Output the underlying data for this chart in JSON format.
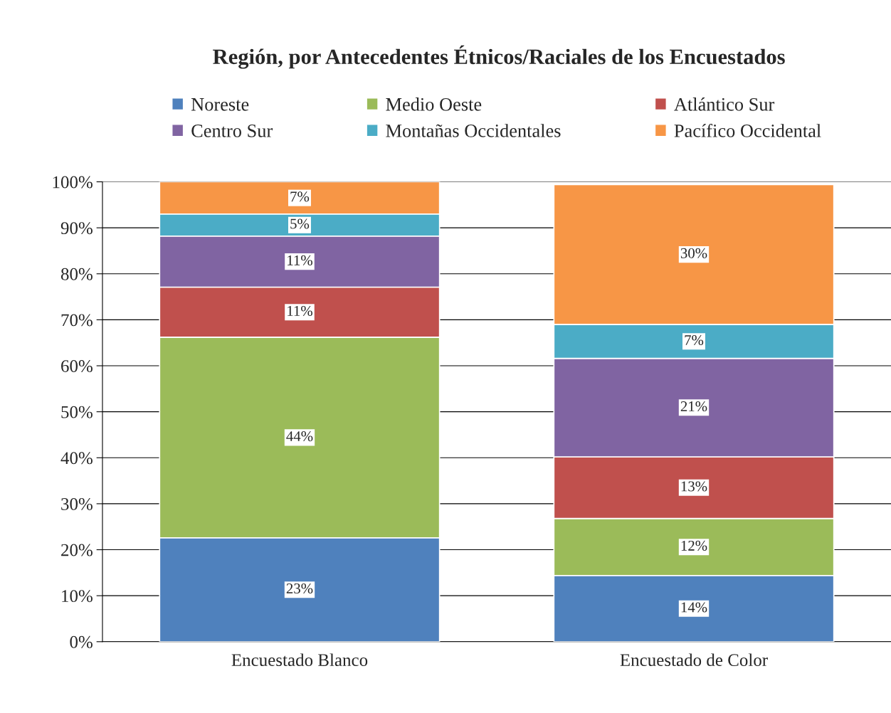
{
  "chart_data": {
    "type": "bar",
    "title": "Región, por Antecedentes Étnicos/Raciales de los Encuestados",
    "categories": [
      "Encuestado Blanco",
      "Encuestado de Color"
    ],
    "stacked": true,
    "series": [
      {
        "name": "Noreste",
        "color": "#4f81bd",
        "values": [
          22.6,
          14.4
        ],
        "value_labels": [
          "23%",
          "14%"
        ]
      },
      {
        "name": "Medio Oeste",
        "color": "#9bbb59",
        "values": [
          43.6,
          12.4
        ],
        "value_labels": [
          "44%",
          "12%"
        ]
      },
      {
        "name": "Atlántico Sur",
        "color": "#c0504d",
        "values": [
          10.9,
          13.4
        ],
        "value_labels": [
          "11%",
          "13%"
        ]
      },
      {
        "name": "Centro Sur",
        "color": "#8064a2",
        "values": [
          11.1,
          21.4
        ],
        "value_labels": [
          "11%",
          "21%"
        ]
      },
      {
        "name": "Montañas Occidentales",
        "color": "#4bacc6",
        "values": [
          4.8,
          7.4
        ],
        "value_labels": [
          "5%",
          "7%"
        ]
      },
      {
        "name": "Pacífico Occidental",
        "color": "#f79646",
        "values": [
          7.0,
          30.4
        ],
        "value_labels": [
          "7%",
          "30%"
        ]
      }
    ],
    "ylim": [
      0,
      100
    ],
    "yticks": [
      {
        "value": 0,
        "label": "0%"
      },
      {
        "value": 10,
        "label": "10%"
      },
      {
        "value": 20,
        "label": "20%"
      },
      {
        "value": 30,
        "label": "30%"
      },
      {
        "value": 40,
        "label": "40%"
      },
      {
        "value": 50,
        "label": "50%"
      },
      {
        "value": 60,
        "label": "60%"
      },
      {
        "value": 70,
        "label": "70%"
      },
      {
        "value": 80,
        "label": "80%"
      },
      {
        "value": 90,
        "label": "90%"
      },
      {
        "value": 100,
        "label": "100%"
      }
    ],
    "grid": "y",
    "legend": "top"
  }
}
